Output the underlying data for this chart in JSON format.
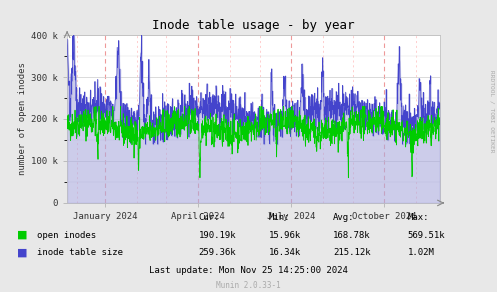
{
  "title": "Inode table usage - by year",
  "ylabel": "number of open inodes",
  "bg_color": "#e8e8e8",
  "plot_bg_color": "#ffffff",
  "grid_color_major": "#cccccc",
  "grid_color_minor": "#dddddd",
  "dashed_vline_color": "#ff9999",
  "line1_color": "#00cc00",
  "line2_color": "#4444cc",
  "line2_fill_color": "#aaaadd",
  "ylim": [
    0,
    400000
  ],
  "ytick_labels": [
    "0",
    "100 k",
    "200 k",
    "300 k",
    "400 k"
  ],
  "xtick_labels": [
    "January 2024",
    "April 2024",
    "July 2024",
    "October 2024"
  ],
  "legend_entries": [
    "open inodes",
    "inode table size"
  ],
  "legend_colors": [
    "#00cc00",
    "#4444cc"
  ],
  "stats_header": [
    "Cur:",
    "Min:",
    "Avg:",
    "Max:"
  ],
  "stats_line1": [
    "190.19k",
    "15.96k",
    "168.78k",
    "569.51k"
  ],
  "stats_line2": [
    "259.36k",
    "16.34k",
    "215.12k",
    "1.02M"
  ],
  "last_update": "Last update: Mon Nov 25 14:25:00 2024",
  "munin_label": "Munin 2.0.33-1",
  "right_label": "RRDTOOL / TOBI OETIKER",
  "num_points": 1460
}
